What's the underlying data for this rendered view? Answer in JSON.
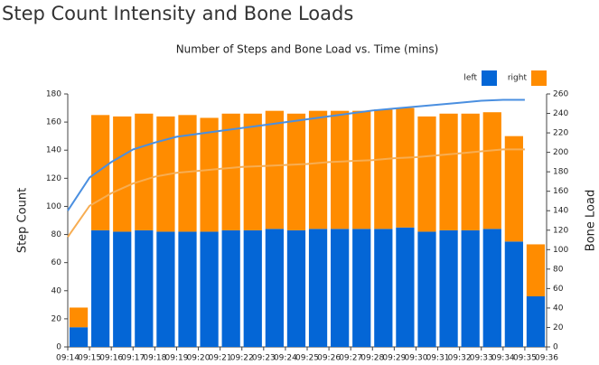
{
  "chart_data": {
    "type": "bar",
    "stacked": true,
    "title": "Step Count Intensity and Bone Loads",
    "subtitle": "Number of Steps and Bone Load vs. Time (mins)",
    "ylabel": "Step Count",
    "y2label": "Bone Load",
    "legend": "top-right",
    "xticks": [
      "09:14",
      "09:15",
      "09:16",
      "09:17",
      "09:18",
      "09:19",
      "09:20",
      "09:21",
      "09:22",
      "09:23",
      "09:24",
      "09:25",
      "09:26",
      "09:27",
      "09:28",
      "09:29",
      "09:30",
      "09:31",
      "09:32",
      "09:33",
      "09:34",
      "09:35",
      "09:36"
    ],
    "ylim": [
      0,
      180
    ],
    "yticks": [
      0,
      20,
      40,
      60,
      80,
      100,
      120,
      140,
      160,
      180
    ],
    "y2lim": [
      0,
      260
    ],
    "y2ticks": [
      0,
      20,
      40,
      60,
      80,
      100,
      120,
      140,
      160,
      180,
      200,
      220,
      240,
      260
    ],
    "series": [
      {
        "name": "left",
        "color": "#0466d6",
        "values": [
          14,
          83,
          82,
          83,
          82,
          82,
          82,
          83,
          83,
          84,
          83,
          84,
          84,
          84,
          84,
          85,
          82,
          83,
          83,
          84,
          75,
          36
        ]
      },
      {
        "name": "right",
        "color": "#ff8c00",
        "values": [
          14,
          82,
          82,
          83,
          82,
          83,
          81,
          83,
          83,
          84,
          83,
          84,
          84,
          84,
          85,
          85,
          82,
          83,
          83,
          83,
          75,
          37
        ]
      }
    ],
    "lines": [
      {
        "color": "#4a8fe0",
        "axis": "y2",
        "values": [
          140,
          174,
          190,
          203,
          210,
          216,
          219,
          222,
          225,
          228,
          231,
          234,
          237,
          240,
          243,
          245,
          247,
          249,
          251,
          253,
          254,
          254
        ]
      },
      {
        "color": "#f7ad52",
        "axis": "y2",
        "values": [
          113,
          145,
          158,
          168,
          175,
          179,
          181,
          183,
          185,
          186,
          187,
          188,
          190,
          191,
          192,
          194,
          195,
          197,
          199,
          201,
          203,
          203
        ]
      }
    ]
  }
}
